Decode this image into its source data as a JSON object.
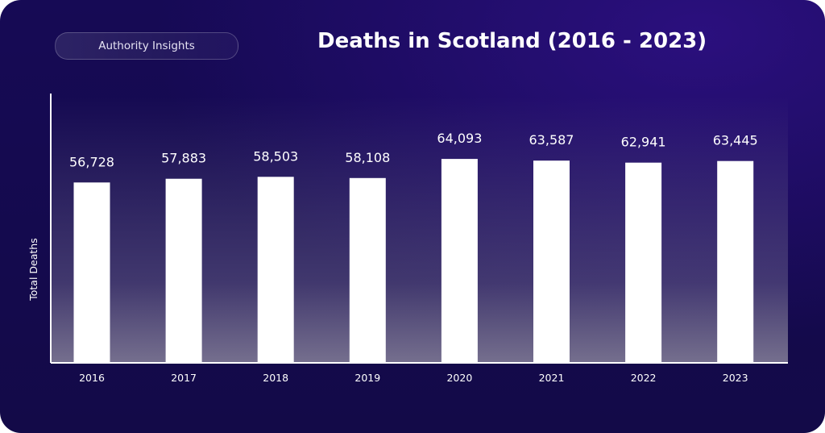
{
  "badge": "Authority Insights",
  "chart_data": {
    "type": "bar",
    "title": "Deaths in Scotland (2016 - 2023)",
    "xlabel": "",
    "ylabel": "Total Deaths",
    "categories": [
      "2016",
      "2017",
      "2018",
      "2019",
      "2020",
      "2021",
      "2022",
      "2023"
    ],
    "values": [
      56728,
      57883,
      58503,
      58108,
      64093,
      63587,
      62941,
      63445
    ],
    "value_labels": [
      "56,728",
      "57,883",
      "58,503",
      "58,108",
      "64,093",
      "63,587",
      "62,941",
      "63,445"
    ],
    "grid": false,
    "legend": "none",
    "bar_color": "#ffffff",
    "text_color": "#ffffff",
    "background_color": "#150b50"
  }
}
